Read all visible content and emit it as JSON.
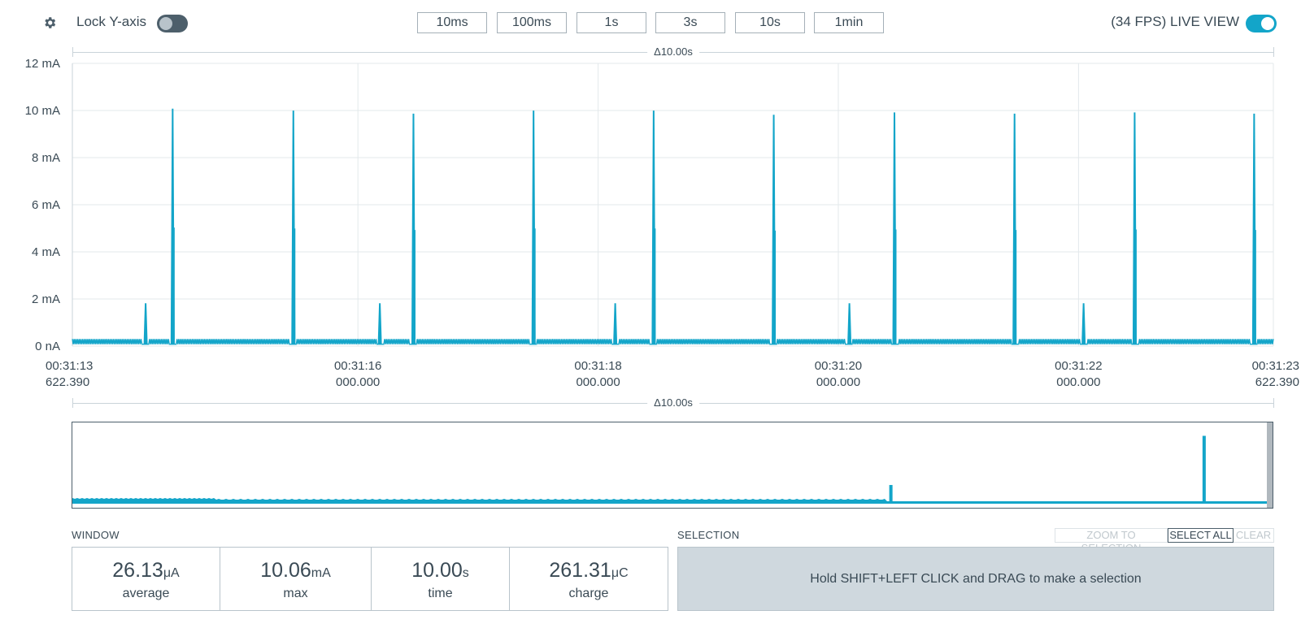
{
  "toolbar": {
    "lock_y_label": "Lock Y-axis",
    "lock_y_on": false,
    "time_ranges": [
      "10ms",
      "100ms",
      "1s",
      "3s",
      "10s",
      "1min"
    ],
    "live_view_label": "(34 FPS) LIVE VIEW",
    "live_view_on": true
  },
  "window_span_label": "Δ10.00s",
  "minimap_span_label": "Δ10.00s",
  "chart_data": {
    "type": "line",
    "title": "",
    "xlabel": "",
    "ylabel": "",
    "y_tick_labels": [
      "0 nA",
      "2 mA",
      "4 mA",
      "6 mA",
      "8 mA",
      "10 mA",
      "12 mA"
    ],
    "y_tick_values": [
      0,
      2,
      4,
      6,
      8,
      10,
      12
    ],
    "ylim": [
      0,
      12
    ],
    "xlim": [
      0,
      10.0
    ],
    "x_ticks": [
      {
        "t": 0.0,
        "line1": "00:31:13",
        "line2": "622.390"
      },
      {
        "t": 2.37761,
        "line1": "00:31:16",
        "line2": "000.000"
      },
      {
        "t": 4.37761,
        "line1": "00:31:18",
        "line2": "000.000"
      },
      {
        "t": 6.37761,
        "line1": "00:31:20",
        "line2": "000.000"
      },
      {
        "t": 8.37761,
        "line1": "00:31:22",
        "line2": "000.000"
      },
      {
        "t": 10.0,
        "line1": "00:31:23",
        "line2": "622.390"
      }
    ],
    "grid": true,
    "color": "#13a5c9",
    "series": [
      {
        "baseline_ma": 0.08,
        "ripple_peak_ma": 0.3,
        "peaks_ma": [
          {
            "t": 0.61,
            "y": 1.8
          },
          {
            "t": 0.835,
            "y": 10.06
          },
          {
            "t": 1.84,
            "y": 9.98
          },
          {
            "t": 2.56,
            "y": 1.8
          },
          {
            "t": 2.84,
            "y": 9.85
          },
          {
            "t": 3.84,
            "y": 9.98
          },
          {
            "t": 4.52,
            "y": 1.8
          },
          {
            "t": 4.84,
            "y": 9.98
          },
          {
            "t": 5.84,
            "y": 9.8
          },
          {
            "t": 6.47,
            "y": 1.8
          },
          {
            "t": 6.845,
            "y": 9.9
          },
          {
            "t": 7.845,
            "y": 9.85
          },
          {
            "t": 8.42,
            "y": 1.8
          },
          {
            "t": 8.845,
            "y": 9.9
          },
          {
            "t": 9.84,
            "y": 9.85
          }
        ]
      }
    ]
  },
  "minimap": {
    "spikes": [
      {
        "t": 0.682,
        "level": 0.24
      },
      {
        "t": 0.943,
        "level": 0.87
      }
    ]
  },
  "window_stats": {
    "section_label": "WINDOW",
    "items": [
      {
        "value": "26.13",
        "unit": "μA",
        "label": "average"
      },
      {
        "value": "10.06",
        "unit": "mA",
        "label": "max"
      },
      {
        "value": "10.00",
        "unit": "s",
        "label": "time"
      },
      {
        "value": "261.31",
        "unit": "μC",
        "label": "charge"
      }
    ]
  },
  "selection": {
    "section_label": "SELECTION",
    "zoom_label": "ZOOM TO SELECTION",
    "select_all_label": "SELECT ALL",
    "clear_label": "CLEAR",
    "message": "Hold SHIFT+LEFT CLICK and DRAG to make a selection"
  }
}
